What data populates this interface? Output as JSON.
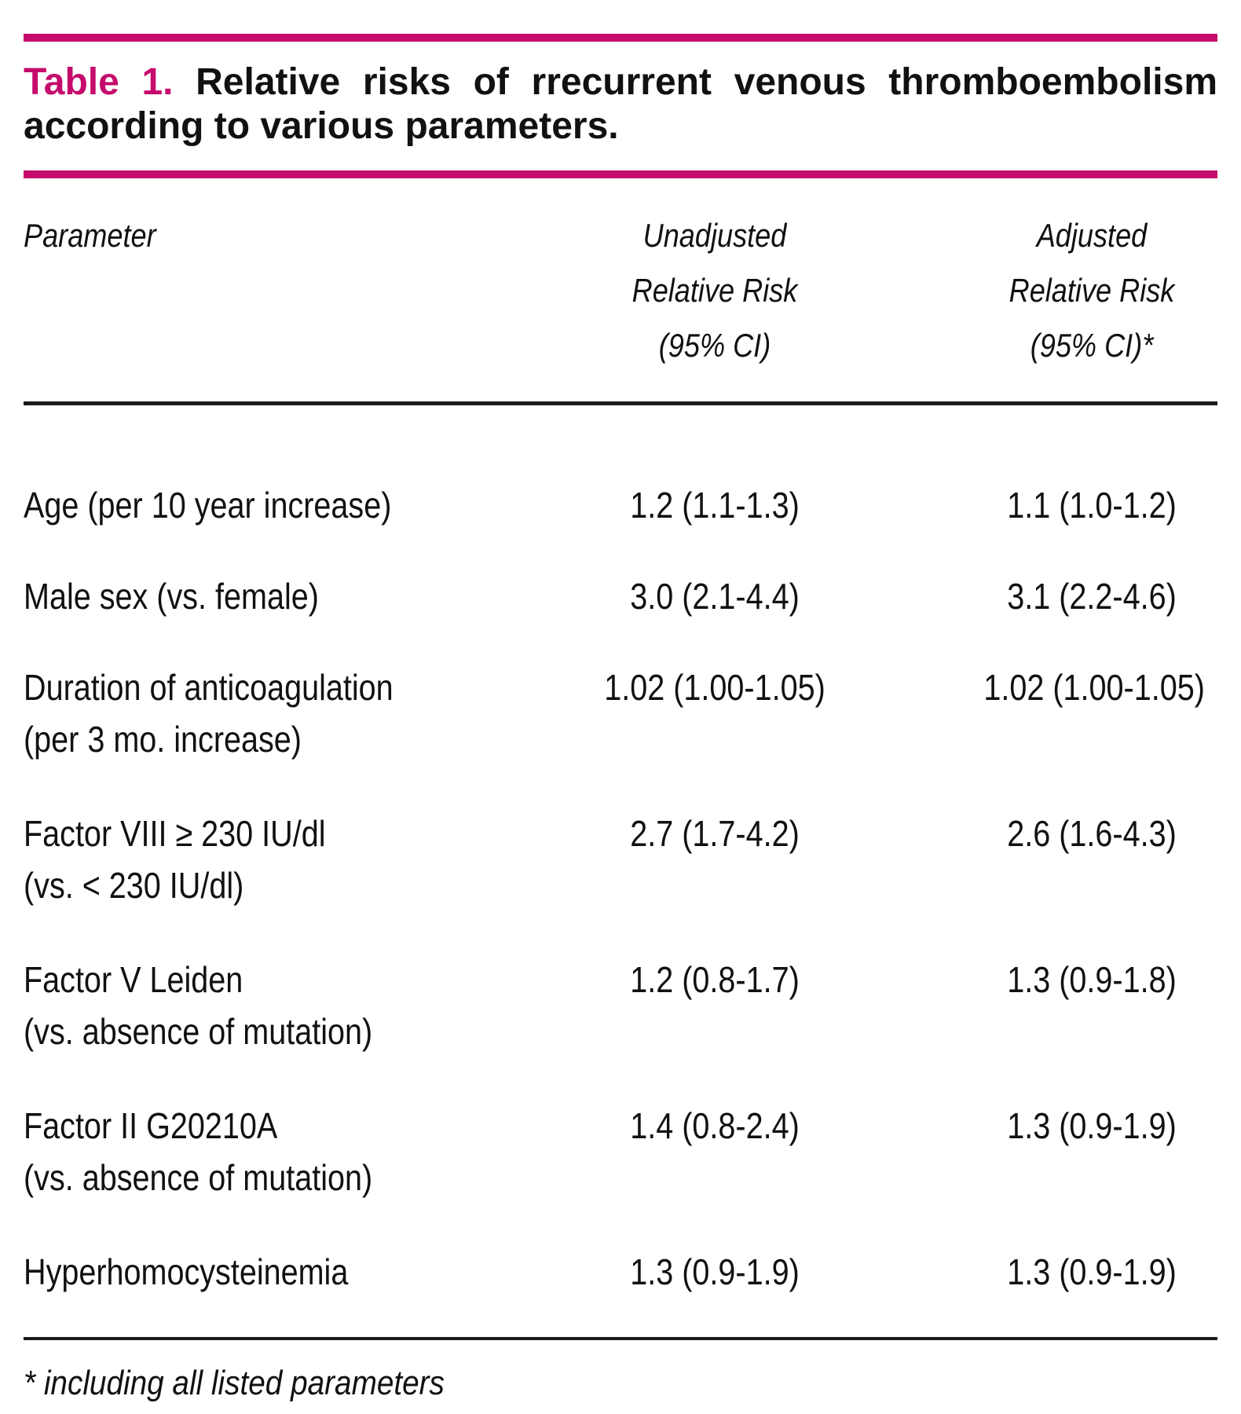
{
  "accent_color": "#C50B6B",
  "title": {
    "label": "Table 1.",
    "line1_rest": "Relative risks of rrecurrent venous thromboembolism",
    "line2": "according to various parameters."
  },
  "columns": [
    "Parameter",
    "Unadjusted\nRelative Risk\n(95% CI)",
    "Adjusted\nRelative Risk\n(95% CI)*"
  ],
  "rows": [
    {
      "parameter": "Age (per 10 year increase)",
      "unadjusted": "1.2 (1.1-1.3)",
      "adjusted": "1.1 (1.0-1.2)"
    },
    {
      "parameter": "Male sex (vs. female)",
      "unadjusted": "3.0 (2.1-4.4)",
      "adjusted": "3.1 (2.2-4.6)"
    },
    {
      "parameter": "Duration of anticoagulation\n(per 3 mo. increase)",
      "unadjusted": "1.02 (1.00-1.05)",
      "adjusted": "1.02 (1.00-1.05)"
    },
    {
      "parameter": "Factor VIII ≥ 230 IU/dl\n(vs. < 230 IU/dl)",
      "unadjusted": "2.7 (1.7-4.2)",
      "adjusted": "2.6 (1.6-4.3)"
    },
    {
      "parameter": "Factor V Leiden\n(vs. absence of mutation)",
      "unadjusted": "1.2 (0.8-1.7)",
      "adjusted": "1.3 (0.9-1.8)"
    },
    {
      "parameter": "Factor II G20210A\n(vs. absence of mutation)",
      "unadjusted": "1.4 (0.8-2.4)",
      "adjusted": "1.3 (0.9-1.9)"
    },
    {
      "parameter": "Hyperhomocysteinemia",
      "unadjusted": "1.3 (0.9-1.9)",
      "adjusted": "1.3 (0.9-1.9)"
    }
  ],
  "footnote": "* including all listed parameters"
}
